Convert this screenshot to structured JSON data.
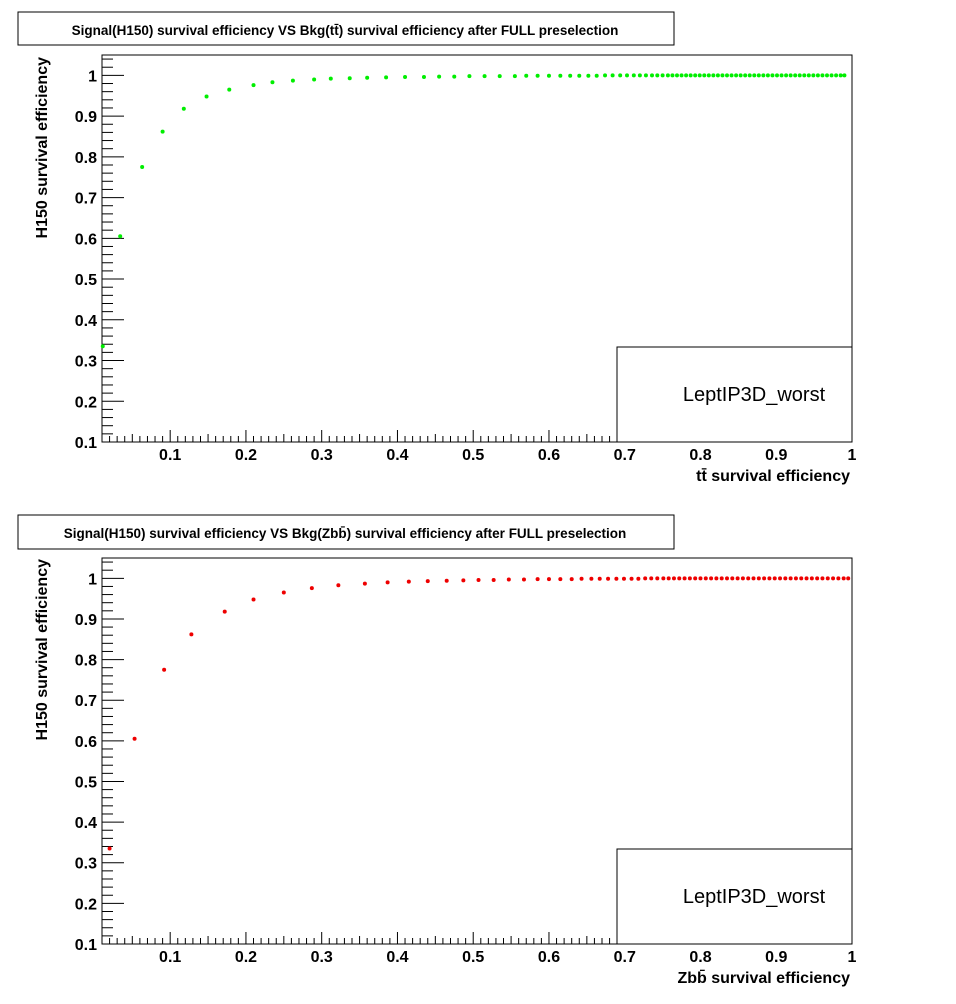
{
  "chart_data": [
    {
      "type": "scatter",
      "title": "Signal(H150) survival efficiency VS Bkg(tt̄) survival efficiency after FULL preselection",
      "xlabel": "tt̄ survival efficiency",
      "ylabel": "H150 survival efficiency",
      "legend_text": "LeptIP3D_worst",
      "color": "#00ee00",
      "xlim": [
        0.01,
        1.0
      ],
      "ylim": [
        0.1,
        1.05
      ],
      "x_ticks": [
        "0.1",
        "0.2",
        "0.3",
        "0.4",
        "0.5",
        "0.6",
        "0.7",
        "0.8",
        "0.9",
        "1"
      ],
      "y_ticks": [
        "0.1",
        "0.2",
        "0.3",
        "0.4",
        "0.5",
        "0.6",
        "0.7",
        "0.8",
        "0.9",
        "1"
      ],
      "grid": false,
      "legend_placement": "bottom-right",
      "series": [
        {
          "x": [
            0.011,
            0.034,
            0.063,
            0.09,
            0.118,
            0.148,
            0.178,
            0.21,
            0.235,
            0.262,
            0.29,
            0.312,
            0.337,
            0.36,
            0.385,
            0.41,
            0.435,
            0.455,
            0.475,
            0.495,
            0.515,
            0.535,
            0.555,
            0.57,
            0.585,
            0.6,
            0.615,
            0.628,
            0.64,
            0.652,
            0.663,
            0.674,
            0.684,
            0.694,
            0.703,
            0.712,
            0.72,
            0.728,
            0.736,
            0.743,
            0.75,
            0.757,
            0.763,
            0.769,
            0.775,
            0.781,
            0.787,
            0.793,
            0.799,
            0.805,
            0.811,
            0.817,
            0.823,
            0.829,
            0.835,
            0.841,
            0.847,
            0.853,
            0.859,
            0.865,
            0.871,
            0.877,
            0.883,
            0.889,
            0.895,
            0.901,
            0.907,
            0.913,
            0.919,
            0.925,
            0.931,
            0.937,
            0.943,
            0.949,
            0.955,
            0.961,
            0.967,
            0.973,
            0.979,
            0.985,
            0.99
          ],
          "y": [
            0.335,
            0.605,
            0.775,
            0.862,
            0.918,
            0.948,
            0.965,
            0.976,
            0.983,
            0.987,
            0.99,
            0.992,
            0.993,
            0.994,
            0.995,
            0.996,
            0.996,
            0.997,
            0.997,
            0.998,
            0.998,
            0.998,
            0.998,
            0.999,
            0.999,
            0.999,
            0.999,
            0.999,
            0.999,
            0.999,
            0.999,
            1.0,
            1.0,
            1.0,
            1.0,
            1.0,
            1.0,
            1.0,
            1.0,
            1.0,
            1.0,
            1.0,
            1.0,
            1.0,
            1.0,
            1.0,
            1.0,
            1.0,
            1.0,
            1.0,
            1.0,
            1.0,
            1.0,
            1.0,
            1.0,
            1.0,
            1.0,
            1.0,
            1.0,
            1.0,
            1.0,
            1.0,
            1.0,
            1.0,
            1.0,
            1.0,
            1.0,
            1.0,
            1.0,
            1.0,
            1.0,
            1.0,
            1.0,
            1.0,
            1.0,
            1.0,
            1.0,
            1.0,
            1.0,
            1.0,
            1.0
          ]
        }
      ]
    },
    {
      "type": "scatter",
      "title": "Signal(H150) survival efficiency VS Bkg(Zbb̄) survival efficiency after FULL preselection",
      "xlabel": "Zbb̄ survival efficiency",
      "ylabel": "H150 survival efficiency",
      "legend_text": "LeptIP3D_worst",
      "color": "#ee0000",
      "xlim": [
        0.01,
        1.0
      ],
      "ylim": [
        0.1,
        1.05
      ],
      "x_ticks": [
        "0.1",
        "0.2",
        "0.3",
        "0.4",
        "0.5",
        "0.6",
        "0.7",
        "0.8",
        "0.9",
        "1"
      ],
      "y_ticks": [
        "0.1",
        "0.2",
        "0.3",
        "0.4",
        "0.5",
        "0.6",
        "0.7",
        "0.8",
        "0.9",
        "1"
      ],
      "grid": false,
      "legend_placement": "bottom-right",
      "series": [
        {
          "x": [
            0.02,
            0.053,
            0.092,
            0.128,
            0.172,
            0.21,
            0.25,
            0.287,
            0.322,
            0.357,
            0.387,
            0.415,
            0.44,
            0.465,
            0.487,
            0.507,
            0.527,
            0.547,
            0.567,
            0.585,
            0.6,
            0.615,
            0.63,
            0.643,
            0.656,
            0.667,
            0.678,
            0.689,
            0.699,
            0.709,
            0.718,
            0.727,
            0.735,
            0.743,
            0.751,
            0.758,
            0.765,
            0.772,
            0.779,
            0.786,
            0.793,
            0.8,
            0.807,
            0.814,
            0.821,
            0.828,
            0.835,
            0.842,
            0.849,
            0.856,
            0.863,
            0.87,
            0.877,
            0.884,
            0.891,
            0.898,
            0.905,
            0.912,
            0.919,
            0.926,
            0.933,
            0.94,
            0.947,
            0.954,
            0.961,
            0.968,
            0.975,
            0.982,
            0.989,
            0.995
          ],
          "y": [
            0.335,
            0.605,
            0.775,
            0.862,
            0.918,
            0.948,
            0.965,
            0.976,
            0.983,
            0.987,
            0.99,
            0.992,
            0.993,
            0.994,
            0.995,
            0.996,
            0.996,
            0.997,
            0.997,
            0.998,
            0.998,
            0.998,
            0.998,
            0.999,
            0.999,
            0.999,
            0.999,
            0.999,
            0.999,
            0.999,
            0.999,
            1.0,
            1.0,
            1.0,
            1.0,
            1.0,
            1.0,
            1.0,
            1.0,
            1.0,
            1.0,
            1.0,
            1.0,
            1.0,
            1.0,
            1.0,
            1.0,
            1.0,
            1.0,
            1.0,
            1.0,
            1.0,
            1.0,
            1.0,
            1.0,
            1.0,
            1.0,
            1.0,
            1.0,
            1.0,
            1.0,
            1.0,
            1.0,
            1.0,
            1.0,
            1.0,
            1.0,
            1.0,
            1.0,
            1.0
          ]
        }
      ]
    }
  ]
}
